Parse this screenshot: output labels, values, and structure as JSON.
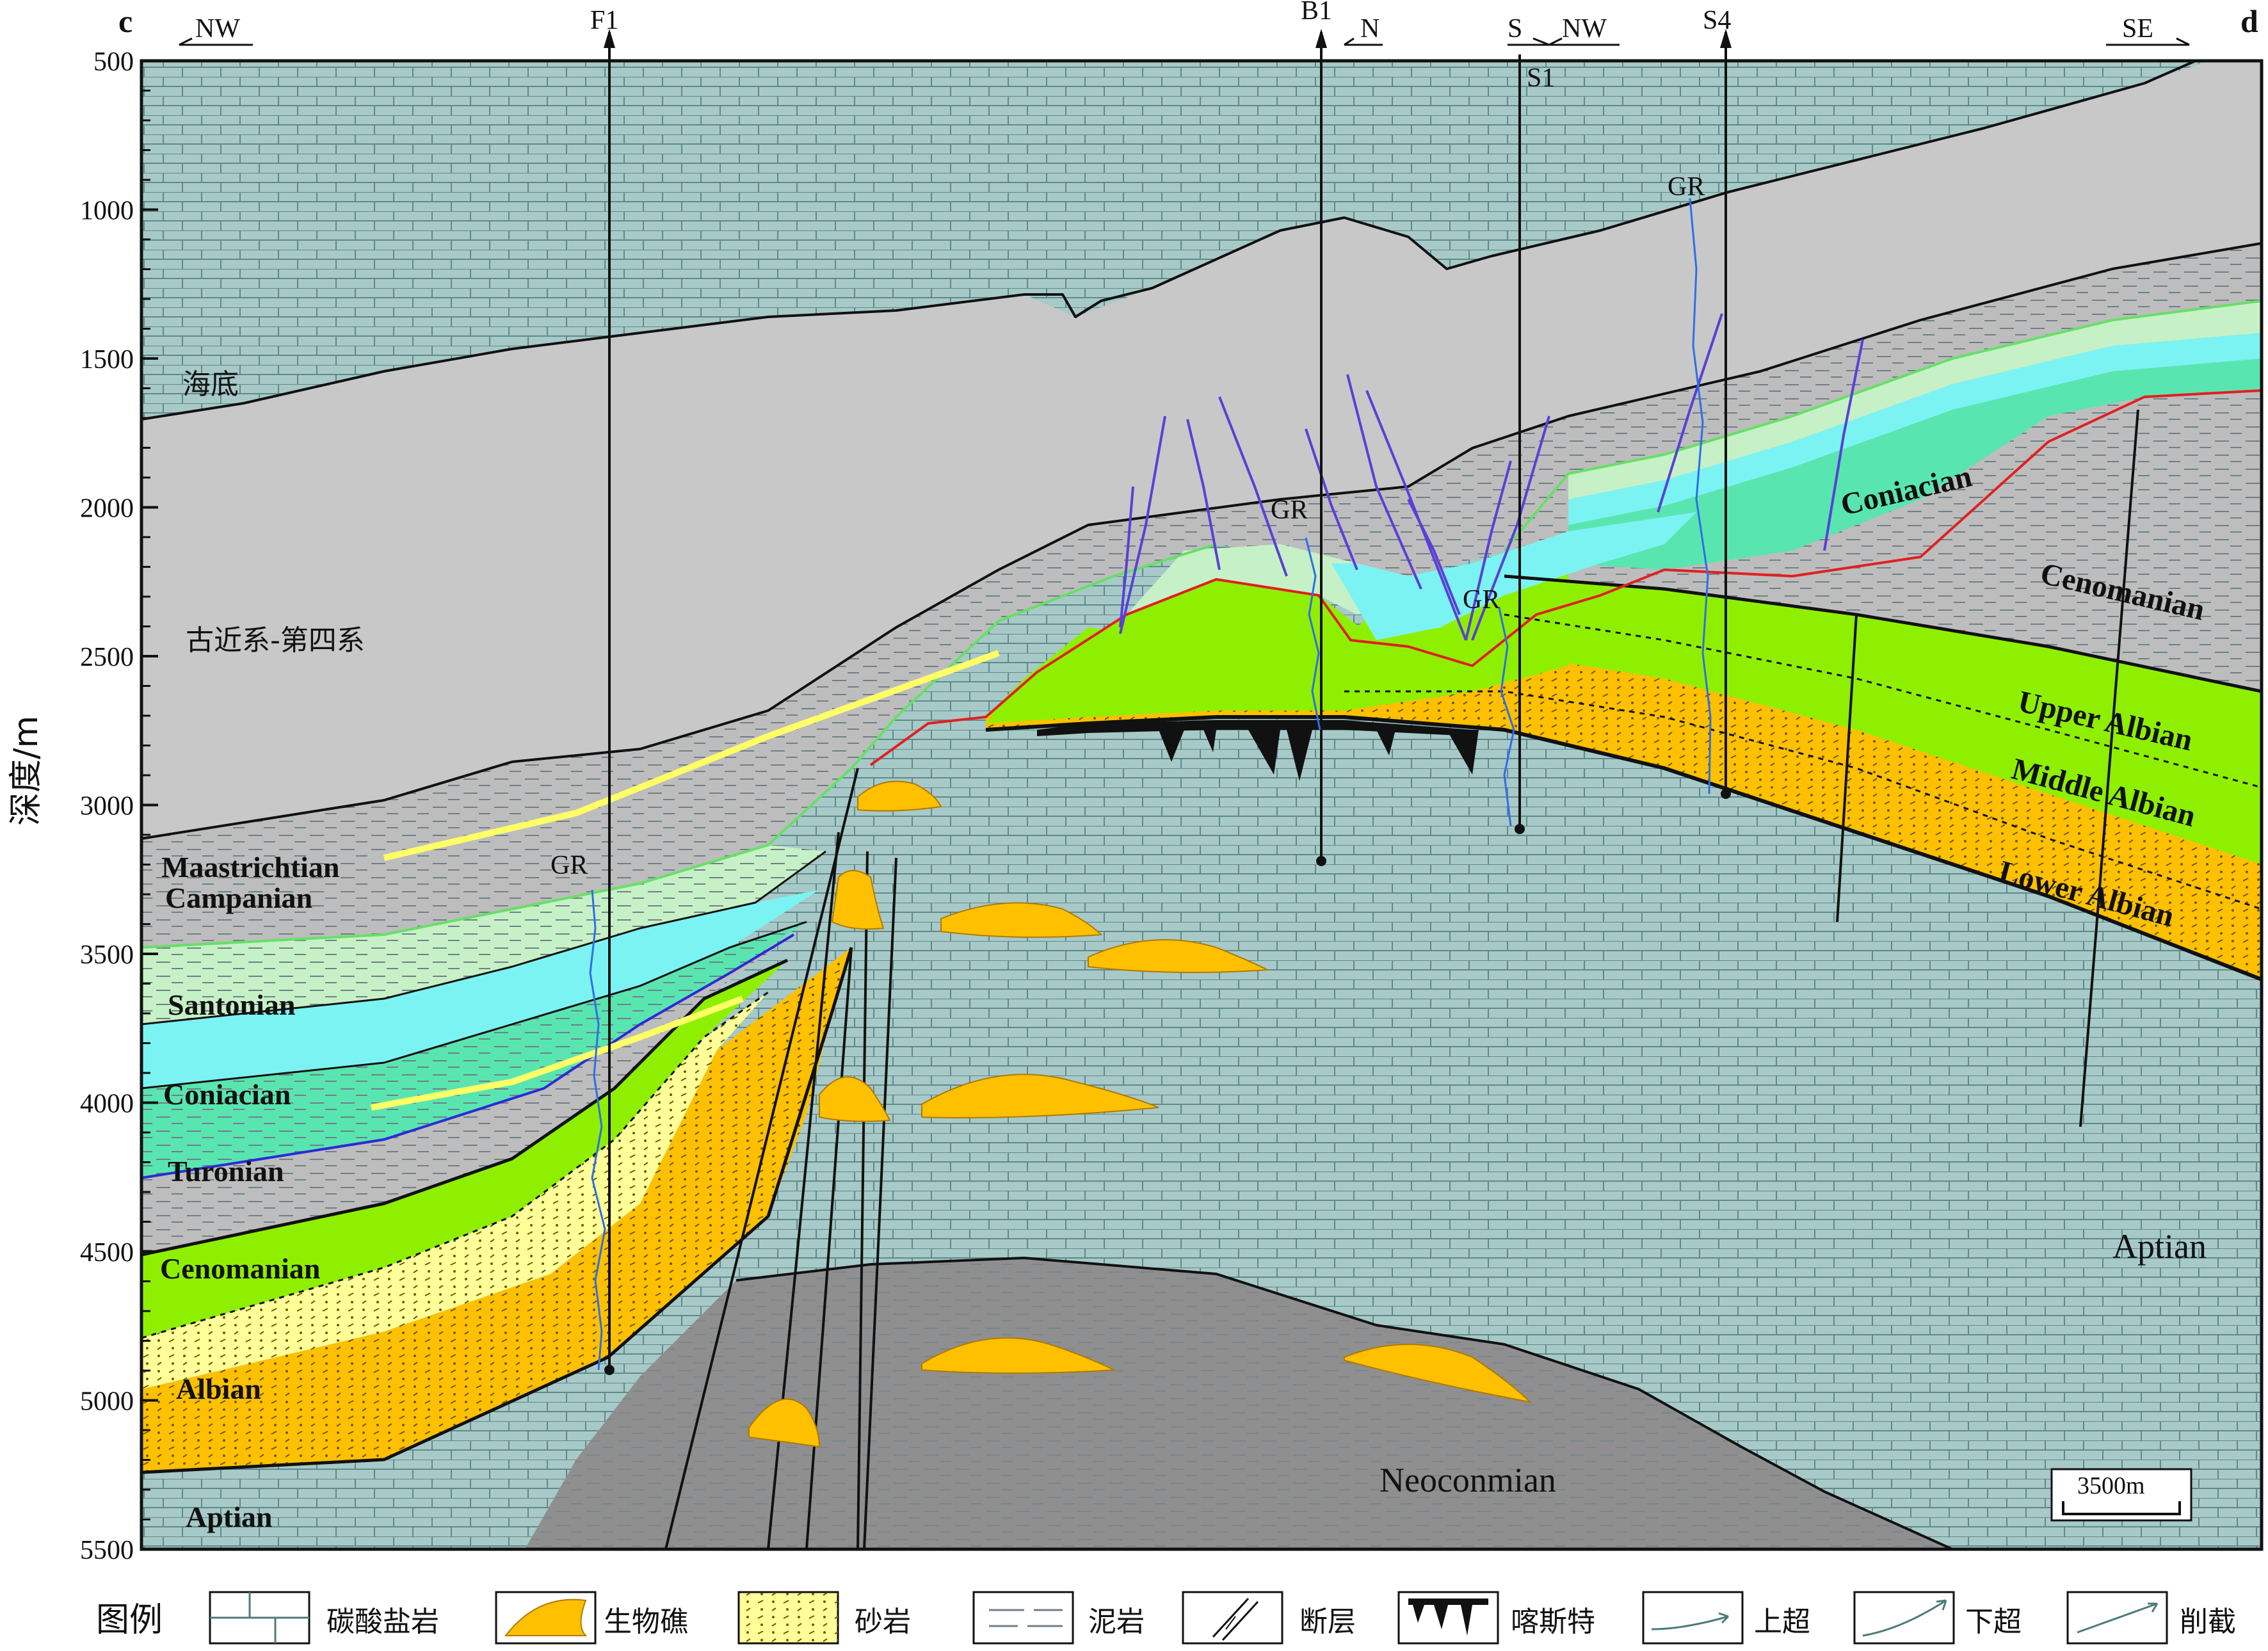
{
  "section": {
    "start": "c",
    "end": "d"
  },
  "directions": {
    "nw_left": "NW",
    "n": "N",
    "s": "S",
    "nw_mid": "NW",
    "se": "SE"
  },
  "wells": {
    "f1": "F1",
    "b1": "B1",
    "s1": "S1",
    "s4": "S4"
  },
  "log_label": "GR",
  "depth_axis": {
    "title": "深度/m",
    "ticks": [
      "500",
      "1000",
      "1500",
      "2000",
      "2500",
      "3000",
      "3500",
      "4000",
      "4500",
      "5000",
      "5500"
    ]
  },
  "units": {
    "seafloor": "海底",
    "cenozoic": "古近系-第四系",
    "maastrichtian": "Maastrichtian",
    "campanian": "Campanian",
    "santonian": "Santonian",
    "coniacian_left": "Coniacian",
    "turonian": "Turonian",
    "cenomanian_left": "Cenomanian",
    "albian": "Albian",
    "aptian_left": "Aptian",
    "coniacian_right": "Coniacian",
    "cenomanian_right": "Cenomanian",
    "upper_albian": "Upper Albian",
    "middle_albian": "Middle Albian",
    "lower_albian": "Lower Albian",
    "aptian_right": "Aptian",
    "neocomian": "Neoconmian"
  },
  "scale_bar": "3500m",
  "legend": {
    "title": "图例",
    "items": [
      "碳酸盐岩",
      "生物礁",
      "砂岩",
      "泥岩",
      "断层",
      "喀斯特",
      "上超",
      "下超",
      "削截"
    ]
  },
  "colors": {
    "seawater_gray": "#c8c8c8",
    "mudstone_gray": "#bdbdbd",
    "aptian_teal": "#a7c9c8",
    "neocomian_gray": "#8f8f8f",
    "light_green": "#c6f1c6",
    "cyan": "#7cf3f3",
    "teal_green": "#59e5b0",
    "bright_green": "#8ef000",
    "yellow_sand": "#ffff99",
    "orange": "#ffc000",
    "fault_purple": "#5b3fd6",
    "gr_blue": "#2e6ee6",
    "unconformity_red": "#e02020"
  }
}
